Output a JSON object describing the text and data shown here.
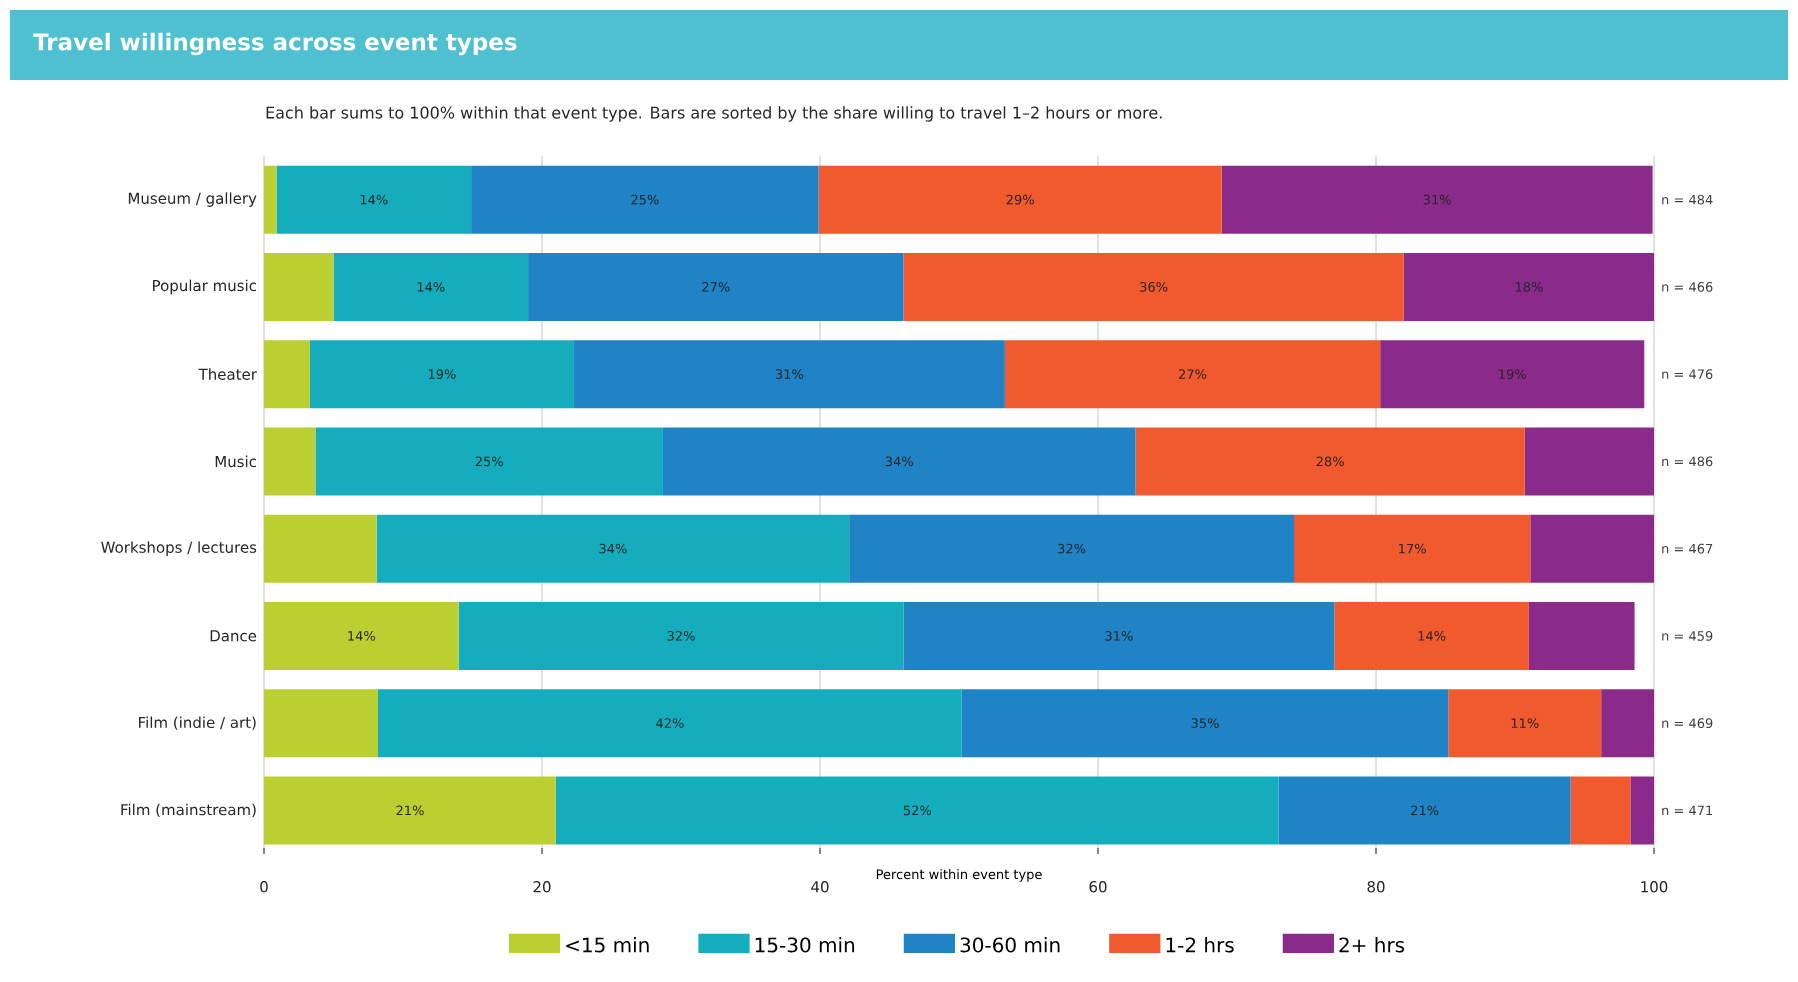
{
  "chart_data": {
    "type": "bar",
    "orientation": "horizontal",
    "stacked": true,
    "title": "Travel willingness across event types",
    "subtitle": "Each bar sums to 100% within that event type. Bars are sorted by the share willing to travel 1–2 hours or more.",
    "xlabel": "Percent within event type",
    "categories": [
      "Museum / gallery",
      "Popular music",
      "Theater",
      "Music",
      "Workshops / lectures",
      "Dance",
      "Film (indie / art)",
      "Film (mainstream)"
    ],
    "series": [
      {
        "name": "<15 min",
        "color": "#bccf32",
        "values": [
          0.9,
          5.0,
          3.3,
          3.7,
          8.1,
          14,
          8.2,
          21
        ],
        "value_labels": [
          null,
          null,
          null,
          null,
          null,
          "14%",
          null,
          "21%"
        ]
      },
      {
        "name": "15-30 min",
        "color": "#15adbd",
        "values": [
          14,
          14,
          19,
          25,
          34,
          32,
          42,
          52
        ],
        "value_labels": [
          "14%",
          "14%",
          "19%",
          "25%",
          "34%",
          "32%",
          "42%",
          "52%"
        ]
      },
      {
        "name": "30-60 min",
        "color": "#1f83c6",
        "values": [
          25,
          27,
          31,
          34,
          32,
          31,
          35,
          21
        ],
        "value_labels": [
          "25%",
          "27%",
          "31%",
          "34%",
          "32%",
          "31%",
          "35%",
          "21%"
        ]
      },
      {
        "name": "1-2 hrs",
        "color": "#f1592e",
        "values": [
          29,
          36,
          27,
          28,
          17,
          14,
          11,
          4.3
        ],
        "value_labels": [
          "29%",
          "36%",
          "27%",
          "28%",
          "17%",
          "14%",
          "11%",
          null
        ]
      },
      {
        "name": "2+ hrs",
        "color": "#8a2a8a",
        "values": [
          31,
          18,
          19,
          9.3,
          8.9,
          7.6,
          3.8,
          1.7
        ],
        "value_labels": [
          "31%",
          "18%",
          "19%",
          null,
          null,
          null,
          null,
          null
        ]
      }
    ],
    "xlim": [
      0,
      100
    ],
    "xticks": [
      0,
      20,
      40,
      60,
      80,
      100
    ],
    "grid": "x",
    "legend": "bottom",
    "annotations": [
      "n = 484",
      "n = 466",
      "n = 476",
      "n = 486",
      "n = 467",
      "n = 459",
      "n = 469",
      "n = 471"
    ]
  }
}
